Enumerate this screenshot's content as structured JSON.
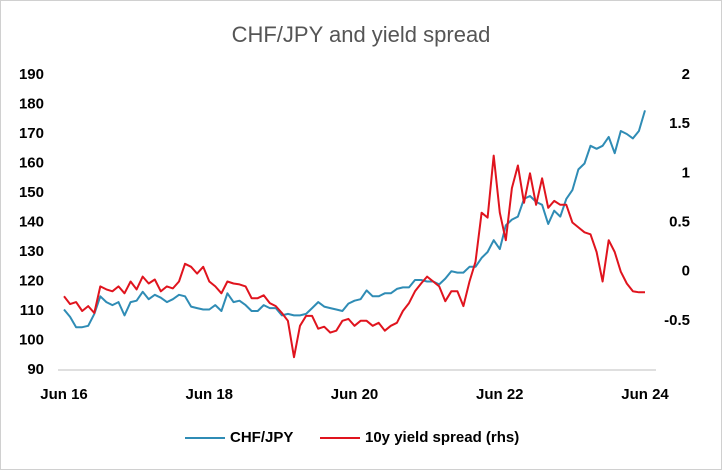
{
  "chart_data": {
    "type": "line",
    "title": "CHF/JPY and yield spread",
    "categories": [
      "Jun 16",
      null,
      null,
      null,
      null,
      null,
      null,
      null,
      null,
      null,
      null,
      null,
      null,
      null,
      null,
      null,
      null,
      null,
      null,
      null,
      null,
      null,
      null,
      null,
      "Jun 18",
      null,
      null,
      null,
      null,
      null,
      null,
      null,
      null,
      null,
      null,
      null,
      null,
      null,
      null,
      null,
      null,
      null,
      null,
      null,
      null,
      null,
      null,
      null,
      "Jun 20",
      null,
      null,
      null,
      null,
      null,
      null,
      null,
      null,
      null,
      null,
      null,
      null,
      null,
      null,
      null,
      null,
      null,
      null,
      null,
      null,
      null,
      null,
      null,
      "Jun 22",
      null,
      null,
      null,
      null,
      null,
      null,
      null,
      null,
      null,
      null,
      null,
      null,
      null,
      null,
      null,
      null,
      null,
      null,
      null,
      null,
      null,
      null,
      null,
      "Jun 24"
    ],
    "series": [
      {
        "name": "CHF/JPY",
        "color": "#2f8cb5",
        "values": [
          110.5,
          108,
          104.5,
          104.5,
          105,
          109,
          115,
          113,
          112,
          113,
          108.5,
          113,
          113.5,
          116.5,
          114,
          115.5,
          114.5,
          113,
          114,
          115.5,
          115,
          111.5,
          111,
          110.5,
          110.5,
          112,
          110,
          116,
          113,
          113.5,
          112,
          110,
          110,
          112,
          111,
          111,
          108.5,
          109,
          108.5,
          108.5,
          109,
          111,
          113,
          111.5,
          111,
          110.5,
          110,
          112.5,
          113.5,
          114,
          117,
          115,
          115,
          116,
          116,
          117.5,
          118,
          118,
          120.5,
          120.5,
          120,
          120,
          119,
          121,
          123.5,
          123,
          123,
          125,
          125,
          128,
          130,
          134,
          131,
          139,
          141,
          142,
          148,
          149,
          147,
          146,
          139.5,
          144,
          142,
          148,
          151,
          158,
          160,
          166,
          165,
          166,
          169,
          163.5,
          171,
          170,
          168.5,
          171,
          178
        ]
      },
      {
        "name": "10y yield spread (rhs)",
        "color": "#e0141e",
        "axis": "y2",
        "values": [
          -0.25,
          -0.33,
          -0.31,
          -0.4,
          -0.35,
          -0.42,
          -0.15,
          -0.18,
          -0.2,
          -0.15,
          -0.22,
          -0.1,
          -0.18,
          -0.05,
          -0.12,
          -0.08,
          -0.2,
          -0.15,
          -0.17,
          -0.1,
          0.08,
          0.05,
          -0.02,
          0.05,
          -0.1,
          -0.15,
          -0.22,
          -0.1,
          -0.12,
          -0.13,
          -0.15,
          -0.27,
          -0.27,
          -0.24,
          -0.32,
          -0.35,
          -0.42,
          -0.5,
          -0.87,
          -0.55,
          -0.45,
          -0.45,
          -0.58,
          -0.56,
          -0.62,
          -0.6,
          -0.5,
          -0.48,
          -0.55,
          -0.5,
          -0.5,
          -0.55,
          -0.52,
          -0.6,
          -0.55,
          -0.52,
          -0.4,
          -0.32,
          -0.2,
          -0.12,
          -0.05,
          -0.1,
          -0.15,
          -0.3,
          -0.2,
          -0.2,
          -0.35,
          -0.1,
          0.1,
          0.6,
          0.55,
          1.18,
          0.6,
          0.32,
          0.85,
          1.08,
          0.7,
          1.0,
          0.68,
          0.95,
          0.65,
          0.72,
          0.68,
          0.68,
          0.5,
          0.45,
          0.4,
          0.38,
          0.2,
          -0.1,
          0.32,
          0.2,
          0.0,
          -0.12,
          -0.2,
          -0.21,
          -0.21
        ]
      }
    ],
    "ylim": [
      90,
      190
    ],
    "yticks": [
      90,
      100,
      110,
      120,
      130,
      140,
      150,
      160,
      170,
      180,
      190
    ],
    "y2lim": [
      -1,
      2
    ],
    "y2ticks": [
      -0.5,
      0,
      0.5,
      1,
      1.5,
      2
    ],
    "legend": "bottom"
  }
}
